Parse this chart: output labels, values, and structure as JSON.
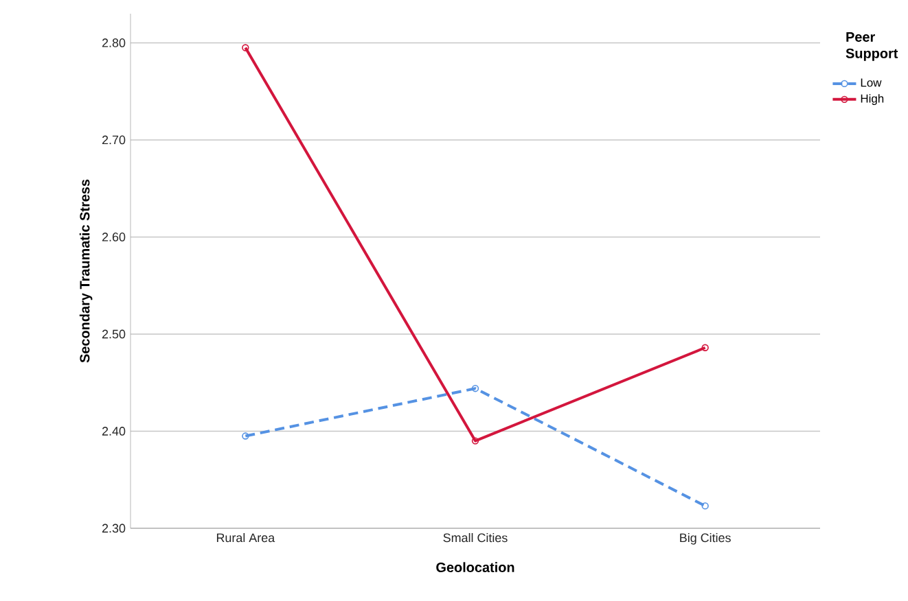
{
  "chart_data": {
    "type": "line",
    "xlabel": "Geolocation",
    "ylabel": "Secondary Traumatic Stress",
    "legend_title": "Peer Support",
    "categories": [
      "Rural Area",
      "Small Cities",
      "Big Cities"
    ],
    "series": [
      {
        "name": "Low",
        "color": "#5592e3",
        "line_style": "dashed",
        "values": [
          2.395,
          2.444,
          2.323
        ]
      },
      {
        "name": "High",
        "color": "#d3163d",
        "line_style": "solid",
        "values": [
          2.795,
          2.39,
          2.486
        ]
      }
    ],
    "ylim": [
      2.3,
      2.83
    ],
    "yticks": [
      {
        "value": 2.3,
        "label": "2.30"
      },
      {
        "value": 2.4,
        "label": "2.40"
      },
      {
        "value": 2.5,
        "label": "2.50"
      },
      {
        "value": 2.6,
        "label": "2.60"
      },
      {
        "value": 2.7,
        "label": "2.70"
      },
      {
        "value": 2.8,
        "label": "2.80"
      }
    ],
    "grid": "y",
    "legend": "top right",
    "marker": "circle"
  }
}
